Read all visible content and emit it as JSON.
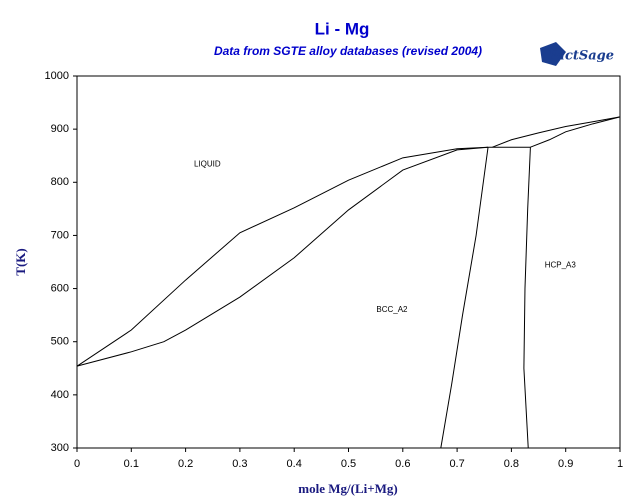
{
  "chart_data": {
    "type": "line",
    "title": "Li - Mg",
    "subtitle": "Data from SGTE alloy databases (revised 2004)",
    "logo": "FactSage",
    "x_label": "mole Mg/(Li+Mg)",
    "y_label": "T(K)",
    "xlim": [
      0,
      1
    ],
    "ylim": [
      300,
      1000
    ],
    "xticks": [
      0,
      0.1,
      0.2,
      0.3,
      0.4,
      0.5,
      0.6,
      0.7,
      0.8,
      0.9,
      1
    ],
    "yticks": [
      300,
      400,
      500,
      600,
      700,
      800,
      900,
      1000
    ],
    "grid": false,
    "series": [
      {
        "color": "#000000",
        "x": [
          0,
          0.1,
          0.2,
          0.3,
          0.4,
          0.5,
          0.6,
          0.7,
          0.757
        ],
        "values": [
          454,
          522,
          616,
          705,
          752,
          804,
          846,
          863,
          866
        ]
      },
      {
        "color": "#000000",
        "x": [
          0,
          0.1,
          0.16,
          0.2,
          0.3,
          0.4,
          0.5,
          0.6,
          0.7,
          0.757
        ],
        "values": [
          454,
          481,
          500,
          522,
          584,
          658,
          748,
          823,
          861,
          866
        ]
      },
      {
        "color": "#000000",
        "x": [
          0.757,
          0.835
        ],
        "values": [
          866,
          866
        ]
      },
      {
        "color": "#000000",
        "x": [
          0.757,
          0.735,
          0.71,
          0.69,
          0.67
        ],
        "values": [
          866,
          700,
          550,
          420,
          300
        ]
      },
      {
        "color": "#000000",
        "x": [
          0.835,
          0.83,
          0.825,
          0.823,
          0.831
        ],
        "values": [
          866,
          750,
          600,
          450,
          300
        ]
      },
      {
        "color": "#000000",
        "x": [
          0.765,
          0.8,
          0.85,
          0.9,
          0.95,
          1
        ],
        "values": [
          866,
          880,
          893,
          905,
          914,
          923
        ]
      },
      {
        "color": "#000000",
        "x": [
          0.835,
          0.87,
          0.9,
          0.95,
          1
        ],
        "values": [
          866,
          880,
          895,
          910,
          923
        ]
      }
    ],
    "annotations": [
      {
        "text": "LIQUID",
        "x": 0.24,
        "y": 834
      },
      {
        "text": "BCC_A2",
        "x": 0.58,
        "y": 560
      },
      {
        "text": "HCP_A3",
        "x": 0.89,
        "y": 644
      }
    ]
  }
}
